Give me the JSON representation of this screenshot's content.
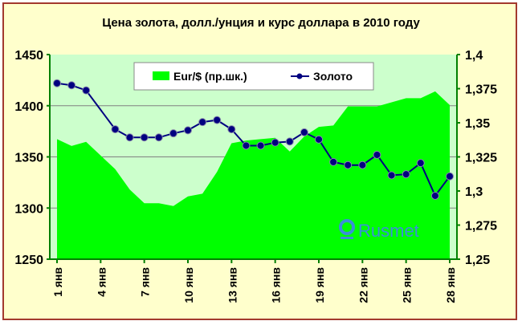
{
  "chart_data": {
    "type": "line+area",
    "title": "Цена золота, долл./унция и курс доллара в 2010 году",
    "x": [
      1,
      2,
      3,
      4,
      5,
      6,
      7,
      8,
      9,
      10,
      11,
      12,
      13,
      14,
      15,
      16,
      17,
      18,
      19,
      20,
      21,
      22,
      23,
      24,
      25,
      26,
      27,
      28
    ],
    "x_tick_labels": [
      "1 янв",
      "4 янв",
      "7 янв",
      "10 янв",
      "13 янв",
      "16 янв",
      "19 янв",
      "22 янв",
      "25 янв",
      "28 янв"
    ],
    "y_left": {
      "ylim": [
        1250,
        1450
      ],
      "ticks": [
        "1250",
        "1300",
        "1350",
        "1400",
        "1450"
      ],
      "tick_values": [
        1250,
        1300,
        1350,
        1400,
        1450
      ]
    },
    "y_right": {
      "ylim": [
        1.25,
        1.4
      ],
      "ticks": [
        "1,25",
        "1,275",
        "1,3",
        "1,325",
        "1,35",
        "1,375",
        "1,4"
      ],
      "tick_values": [
        1.25,
        1.275,
        1.3,
        1.325,
        1.35,
        1.375,
        1.4
      ]
    },
    "grid": true,
    "legend_position": "top",
    "series": [
      {
        "name": "Eur/$ (пр.шк.)",
        "type": "area",
        "axis": "right",
        "color": "#00ff00",
        "values": [
          1.338,
          1.333,
          1.336,
          1.326,
          1.316,
          1.301,
          1.291,
          1.291,
          1.289,
          1.296,
          1.298,
          1.314,
          1.335,
          1.337,
          1.338,
          1.339,
          1.329,
          1.34,
          1.347,
          1.348,
          1.362,
          1.362,
          1.362,
          1.365,
          1.368,
          1.368,
          1.373,
          1.363
        ]
      },
      {
        "name": "Золото",
        "type": "line",
        "axis": "left",
        "color": "#000080",
        "values": [
          1422,
          1420,
          1415,
          null,
          1377,
          1369,
          1369,
          1369,
          1373,
          1376,
          1384,
          1386,
          1377,
          1361,
          1361,
          1364,
          1365,
          1374,
          1367,
          1345,
          1342,
          1342,
          1352,
          1332,
          1333,
          1344,
          1312,
          1331
        ]
      }
    ]
  },
  "watermark": "Rusmet",
  "colors": {
    "plot_bg": "#ccffcc",
    "frame_bg": "#ffffcc",
    "frame_border": "#a33a2e",
    "axis": "#008000"
  }
}
